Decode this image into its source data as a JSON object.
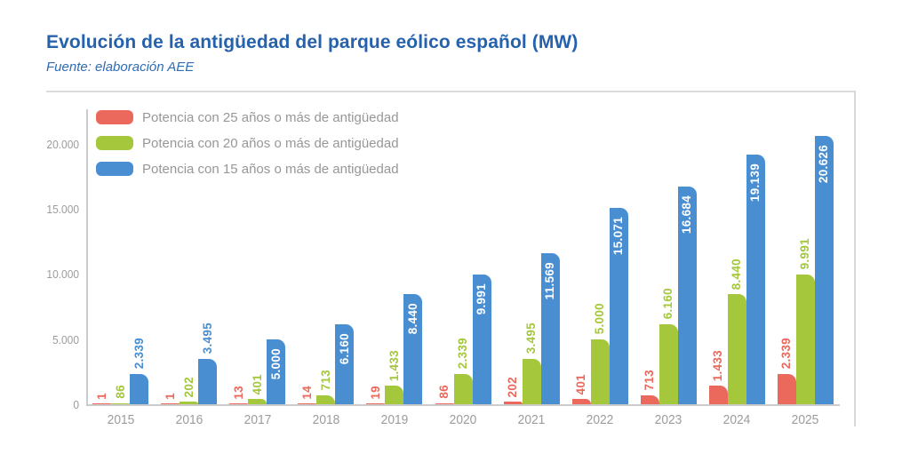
{
  "header": {
    "title": "Evolución de la antigüedad del parque eólico español (MW)",
    "source": "Fuente: elaboración AEE"
  },
  "colors": {
    "title_blue": "#2661AC",
    "subtitle_blue": "#2F6CB4",
    "axis_text_gray": "#9C9C9C",
    "legend_text_gray": "#979797",
    "axis_line_gray": "#CBCBCB",
    "divider_gray": "#DCDCDC",
    "series_red": "#EB685C",
    "series_green": "#A4C73C",
    "series_blue": "#4A8ED2",
    "inside_label_white": "#FFFFFF"
  },
  "chart_data": {
    "type": "bar",
    "title": "Evolución de la antigüedad del parque eólico español (MW)",
    "subtitle": "Fuente: elaboración AEE",
    "categories": [
      "2015",
      "2016",
      "2017",
      "2018",
      "2019",
      "2020",
      "2021",
      "2022",
      "2023",
      "2024",
      "2025"
    ],
    "series": [
      {
        "name": "Potencia con 25 años o más de antigüedad",
        "color": "#EB685C",
        "values": [
          1,
          1,
          13,
          14,
          19,
          86,
          202,
          401,
          713,
          1433,
          2339
        ],
        "labels": [
          "1",
          "1",
          "13",
          "14",
          "19",
          "86",
          "202",
          "401",
          "713",
          "1.433",
          "2.339"
        ],
        "label_placement": "outside",
        "label_color": "#EB685C"
      },
      {
        "name": "Potencia con 20 años o más de antigüedad",
        "color": "#A4C73C",
        "values": [
          86,
          202,
          401,
          713,
          1433,
          2339,
          3495,
          5000,
          6160,
          8440,
          9991
        ],
        "labels": [
          "86",
          "202",
          "401",
          "713",
          "1.433",
          "2.339",
          "3.495",
          "5.000",
          "6.160",
          "8.440",
          "9.991"
        ],
        "label_placement": "outside",
        "label_color": "#A4C73C"
      },
      {
        "name": "Potencia con 15 años o más de antigüedad",
        "color": "#4A8ED2",
        "values": [
          2339,
          3495,
          5000,
          6160,
          8440,
          9991,
          11569,
          15071,
          16684,
          19139,
          20626
        ],
        "labels": [
          "2.339",
          "3.495",
          "5.000",
          "6.160",
          "8.440",
          "9.991",
          "11.569",
          "15.071",
          "16.684",
          "19.139",
          "20.626"
        ],
        "label_placement": "inside_if_tall",
        "inside_threshold": 5000,
        "label_color": "#4A8ED2",
        "inside_label_color": "#FFFFFF"
      }
    ],
    "y_ticks": [
      {
        "value": 0,
        "label": "0"
      },
      {
        "value": 5000,
        "label": "5.000"
      },
      {
        "value": 10000,
        "label": "10.000"
      },
      {
        "value": 15000,
        "label": "15.000"
      },
      {
        "value": 20000,
        "label": "20.000"
      }
    ],
    "ylim": [
      0,
      20626
    ],
    "grid": false,
    "legend_position": "top-left"
  }
}
